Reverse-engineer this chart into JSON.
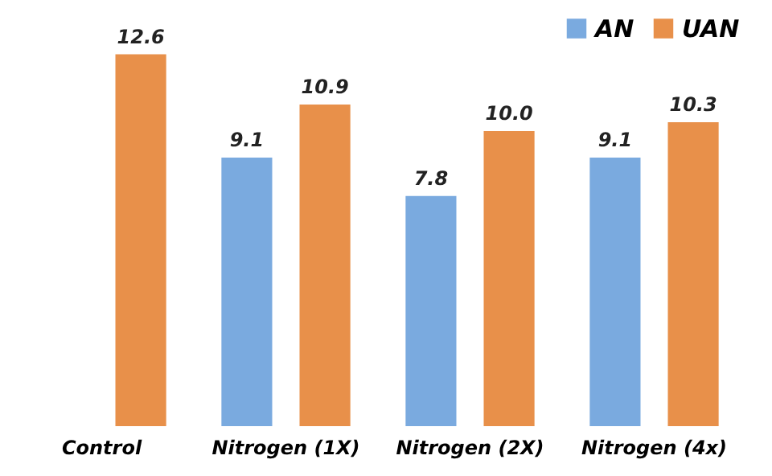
{
  "chart_data": {
    "type": "bar",
    "categories": [
      "Control",
      "Nitrogen (1X)",
      "Nitrogen (2X)",
      "Nitrogen (4x)"
    ],
    "series": [
      {
        "name": "AN",
        "color": "#7aaadf",
        "values": [
          null,
          9.1,
          7.8,
          9.1
        ],
        "value_labels": [
          null,
          "9.1",
          "7.8",
          "9.1"
        ]
      },
      {
        "name": "UAN",
        "color": "#e8904a",
        "values": [
          12.6,
          10.9,
          10.0,
          10.3
        ],
        "value_labels": [
          "12.6",
          "10.9",
          "10.0",
          "10.3"
        ]
      }
    ],
    "legend": "top right",
    "grid": false
  }
}
